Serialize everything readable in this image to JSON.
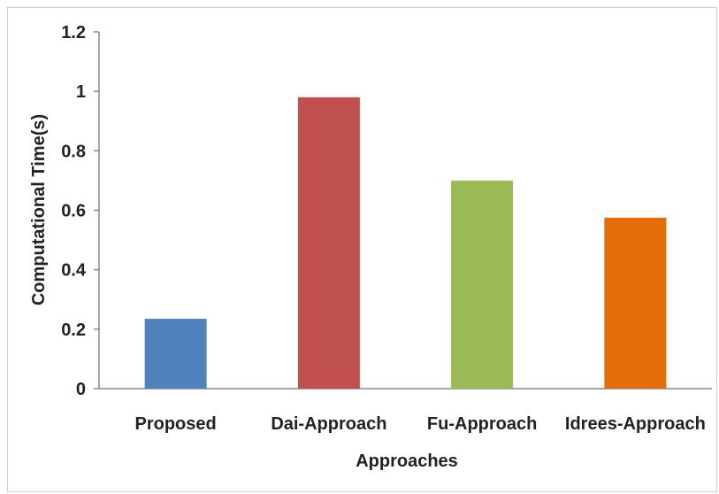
{
  "chart_data": {
    "type": "bar",
    "title": "",
    "xlabel": "Approaches",
    "ylabel": "Computational Time(s)",
    "categories": [
      "Proposed",
      "Dai-Approach",
      "Fu-Approach",
      "Idrees-Approach"
    ],
    "values": [
      0.235,
      0.98,
      0.7,
      0.575
    ],
    "colors": [
      "#4f81bd",
      "#c0504d",
      "#9bbb59",
      "#e46c0a"
    ],
    "ylim": [
      0,
      1.2
    ],
    "yticks": [
      0,
      0.2,
      0.4,
      0.6,
      0.8,
      1,
      1.2
    ],
    "ytick_labels": [
      "0",
      "0.2",
      "0.4",
      "0.6",
      "0.8",
      "1",
      "1.2"
    ],
    "grid": false,
    "legend": "none"
  }
}
